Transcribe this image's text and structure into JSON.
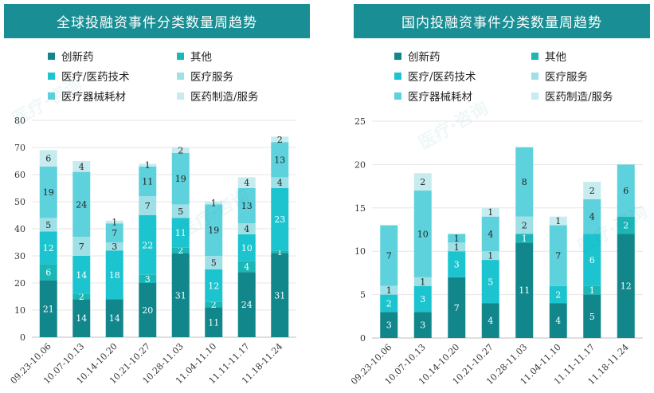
{
  "charts": [
    {
      "title": "全球投融资事件分类数量周趋势",
      "legend": [
        {
          "name": "创新药",
          "color": "#11878c"
        },
        {
          "name": "其他",
          "color": "#1bb6b6"
        },
        {
          "name": "医疗/医药技术",
          "color": "#1cc4cf"
        },
        {
          "name": "医疗服务",
          "color": "#9fdfe6"
        },
        {
          "name": "医疗器械耗材",
          "color": "#5ed2dc"
        },
        {
          "name": "医药制造/服务",
          "color": "#c6ecef"
        }
      ]
    },
    {
      "title": "国内投融资事件分类数量周趋势",
      "legend": [
        {
          "name": "创新药",
          "color": "#11878c"
        },
        {
          "name": "其他",
          "color": "#1bb6b6"
        },
        {
          "name": "医疗/医药技术",
          "color": "#1cc4cf"
        },
        {
          "name": "医疗服务",
          "color": "#9fdfe6"
        },
        {
          "name": "医疗器械耗材",
          "color": "#5ed2dc"
        },
        {
          "name": "医药制造/服务",
          "color": "#c6ecef"
        }
      ]
    }
  ],
  "chart_data": [
    {
      "type": "bar",
      "stacked": true,
      "title": "全球投融资事件分类数量周趋势",
      "categories": [
        "09.23-10.06",
        "10.07-10.13",
        "10.14-10.20",
        "10.21-10.27",
        "10.28-11.03",
        "11.04-11.10",
        "11.11-11.17",
        "11.18-11.24"
      ],
      "ylim": [
        0,
        80
      ],
      "yticks": [
        0,
        10,
        20,
        30,
        40,
        50,
        60,
        70,
        80
      ],
      "series": [
        {
          "name": "创新药",
          "color": "#11878c",
          "values": [
            21,
            14,
            14,
            20,
            31,
            11,
            24,
            31
          ]
        },
        {
          "name": "其他",
          "color": "#1bb6b6",
          "values": [
            6,
            2,
            0,
            3,
            2,
            2,
            4,
            1
          ]
        },
        {
          "name": "医疗/医药技术",
          "color": "#1cc4cf",
          "values": [
            12,
            14,
            18,
            22,
            11,
            12,
            10,
            23
          ]
        },
        {
          "name": "医疗服务",
          "color": "#9fdfe6",
          "values": [
            5,
            7,
            3,
            7,
            5,
            5,
            4,
            4
          ]
        },
        {
          "name": "医疗器械耗材",
          "color": "#5ed2dc",
          "values": [
            19,
            24,
            7,
            11,
            19,
            19,
            13,
            13
          ]
        },
        {
          "name": "医药制造/服务",
          "color": "#c6ecef",
          "values": [
            6,
            4,
            1,
            1,
            2,
            1,
            4,
            2
          ]
        }
      ]
    },
    {
      "type": "bar",
      "stacked": true,
      "title": "国内投融资事件分类数量周趋势",
      "categories": [
        "09.23-10.06",
        "10.07-10.13",
        "10.14-10.20",
        "10.21-10.27",
        "10.28-11.03",
        "11.04-11.10",
        "11.11-11.17",
        "11.18-11.24"
      ],
      "ylim": [
        0,
        25
      ],
      "yticks": [
        0,
        5,
        10,
        15,
        20,
        25
      ],
      "series": [
        {
          "name": "创新药",
          "color": "#11878c",
          "values": [
            3,
            3,
            7,
            4,
            11,
            4,
            5,
            12
          ]
        },
        {
          "name": "其他",
          "color": "#1bb6b6",
          "values": [
            0,
            0,
            0,
            0,
            1,
            0,
            1,
            2
          ]
        },
        {
          "name": "医疗/医药技术",
          "color": "#1cc4cf",
          "values": [
            2,
            3,
            3,
            5,
            0,
            2,
            6,
            0
          ]
        },
        {
          "name": "医疗服务",
          "color": "#9fdfe6",
          "values": [
            1,
            1,
            1,
            1,
            2,
            0,
            0,
            0
          ]
        },
        {
          "name": "医疗器械耗材",
          "color": "#5ed2dc",
          "values": [
            7,
            10,
            1,
            4,
            8,
            7,
            4,
            6
          ]
        },
        {
          "name": "医药制造/服务",
          "color": "#c6ecef",
          "values": [
            0,
            2,
            0,
            1,
            0,
            1,
            2,
            0
          ]
        }
      ]
    }
  ]
}
